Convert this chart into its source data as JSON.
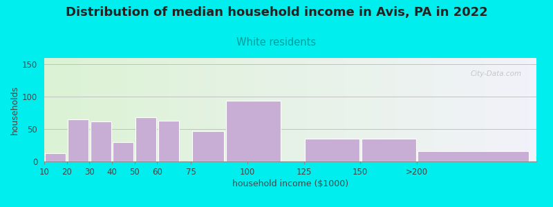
{
  "title": "Distribution of median household income in Avis, PA in 2022",
  "subtitle": "White residents",
  "xlabel": "household income ($1000)",
  "ylabel": "households",
  "background_outer": "#00EEEE",
  "bar_color": "#c8aed4",
  "bar_edge_color": "#ffffff",
  "tick_labels": [
    "10",
    "20",
    "30",
    "40",
    "50",
    "60",
    "75",
    "100",
    "125",
    "150",
    ">200"
  ],
  "values": [
    13,
    65,
    62,
    30,
    68,
    63,
    47,
    94,
    35,
    35,
    16
  ],
  "bar_widths": [
    10,
    10,
    10,
    10,
    10,
    10,
    15,
    25,
    25,
    25,
    50
  ],
  "bar_lefts": [
    10,
    20,
    30,
    40,
    50,
    60,
    75,
    90,
    125,
    150,
    175
  ],
  "ylim": [
    0,
    160
  ],
  "yticks": [
    0,
    50,
    100,
    150
  ],
  "title_fontsize": 13,
  "subtitle_fontsize": 10.5,
  "subtitle_color": "#009999",
  "axis_label_fontsize": 9,
  "tick_fontsize": 8.5,
  "watermark": "City-Data.com",
  "xlim_left": 10,
  "xlim_right": 228,
  "tick_positions": [
    10,
    20,
    30,
    40,
    50,
    60,
    75,
    100,
    125,
    150,
    175
  ]
}
